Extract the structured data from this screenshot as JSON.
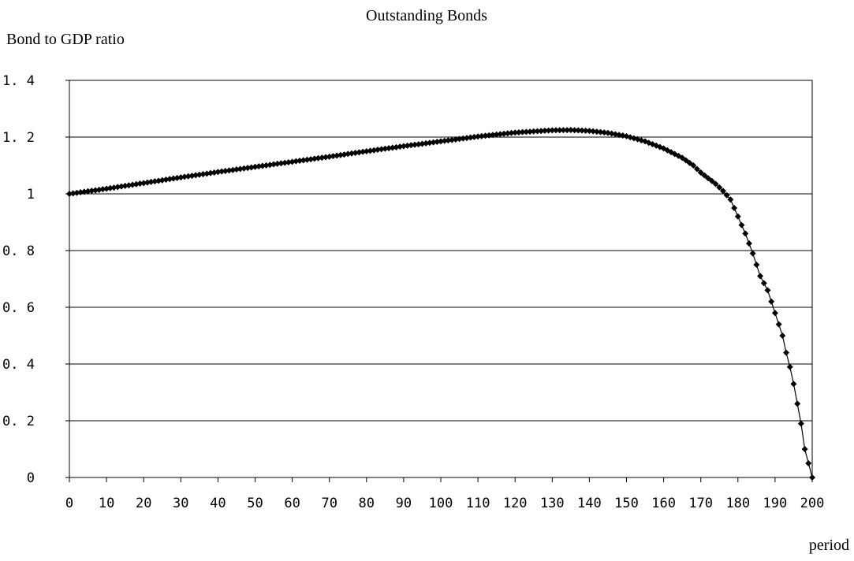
{
  "chart_data": {
    "type": "scatter",
    "title": "Outstanding Bonds",
    "ylabel": "Bond to GDP ratio",
    "xlabel": "period",
    "xlim": [
      0,
      200
    ],
    "ylim": [
      0,
      1.4
    ],
    "x_ticks": [
      "0",
      "10",
      "20",
      "30",
      "40",
      "50",
      "60",
      "70",
      "80",
      "90",
      "100",
      "110",
      "120",
      "130",
      "140",
      "150",
      "160",
      "170",
      "180",
      "190",
      "200"
    ],
    "y_ticks": [
      "0",
      "0. 2",
      "0. 4",
      "0. 6",
      "0. 8",
      "1",
      "1. 2",
      "1. 4"
    ],
    "grid": "horizontal",
    "legend": "none",
    "colors": {
      "series": "#000000",
      "grid": "#000000"
    },
    "marker": "diamond",
    "series": [
      {
        "x": [
          0,
          10,
          20,
          30,
          40,
          50,
          60,
          70,
          80,
          90,
          100,
          110,
          120,
          130,
          135,
          140,
          145,
          150,
          155,
          160,
          165,
          168,
          170,
          172,
          174,
          176,
          178,
          180,
          182,
          184,
          186,
          188,
          190,
          191,
          192,
          193,
          194,
          195,
          196,
          197,
          198,
          199,
          200
        ],
        "y": [
          1.0,
          1.018,
          1.038,
          1.058,
          1.077,
          1.095,
          1.113,
          1.131,
          1.15,
          1.168,
          1.185,
          1.202,
          1.216,
          1.224,
          1.225,
          1.222,
          1.215,
          1.203,
          1.185,
          1.16,
          1.127,
          1.1,
          1.075,
          1.055,
          1.035,
          1.01,
          0.98,
          0.92,
          0.86,
          0.79,
          0.71,
          0.66,
          0.58,
          0.54,
          0.5,
          0.44,
          0.39,
          0.33,
          0.26,
          0.19,
          0.1,
          0.05,
          0.0
        ]
      }
    ]
  }
}
